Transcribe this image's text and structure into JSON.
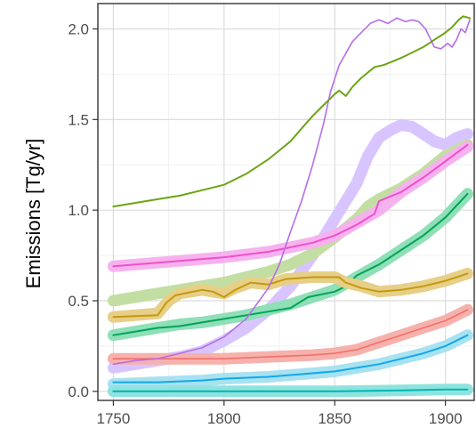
{
  "chart_data": {
    "type": "line",
    "title": "",
    "xlabel": "",
    "ylabel": "Emissions [Tg/yr]",
    "xlim": [
      1743,
      1913
    ],
    "ylim": [
      -0.05,
      2.14
    ],
    "x_ticks": [
      1750,
      1800,
      1850,
      1900
    ],
    "y_ticks": [
      0.0,
      0.5,
      1.0,
      1.5,
      2.0
    ],
    "x_tick_labels": [
      "1750",
      "1800",
      "1850",
      "1900"
    ],
    "y_tick_labels": [
      "0.0",
      "0.5",
      "1.0",
      "1.5",
      "2.0"
    ],
    "grid": true,
    "legend": "none",
    "series": [
      {
        "style": "band",
        "color": "#d8c5ff",
        "points": [
          [
            1750,
            0.13
          ],
          [
            1760,
            0.15
          ],
          [
            1770,
            0.17
          ],
          [
            1780,
            0.19
          ],
          [
            1790,
            0.22
          ],
          [
            1800,
            0.28
          ],
          [
            1810,
            0.35
          ],
          [
            1820,
            0.45
          ],
          [
            1830,
            0.58
          ],
          [
            1840,
            0.75
          ],
          [
            1850,
            0.95
          ],
          [
            1860,
            1.15
          ],
          [
            1865,
            1.3
          ],
          [
            1870,
            1.4
          ],
          [
            1875,
            1.44
          ],
          [
            1880,
            1.47
          ],
          [
            1885,
            1.46
          ],
          [
            1890,
            1.42
          ],
          [
            1895,
            1.38
          ],
          [
            1900,
            1.36
          ],
          [
            1905,
            1.4
          ],
          [
            1910,
            1.42
          ]
        ]
      },
      {
        "style": "band",
        "color": "#c3dea2",
        "points": [
          [
            1750,
            0.5
          ],
          [
            1760,
            0.52
          ],
          [
            1770,
            0.54
          ],
          [
            1780,
            0.56
          ],
          [
            1790,
            0.58
          ],
          [
            1800,
            0.6
          ],
          [
            1810,
            0.63
          ],
          [
            1820,
            0.66
          ],
          [
            1830,
            0.7
          ],
          [
            1840,
            0.76
          ],
          [
            1850,
            0.85
          ],
          [
            1860,
            0.95
          ],
          [
            1865,
            1.02
          ],
          [
            1870,
            1.06
          ],
          [
            1875,
            1.09
          ],
          [
            1880,
            1.12
          ],
          [
            1885,
            1.16
          ],
          [
            1890,
            1.2
          ],
          [
            1895,
            1.25
          ],
          [
            1900,
            1.3
          ],
          [
            1905,
            1.33
          ],
          [
            1910,
            1.36
          ]
        ]
      },
      {
        "style": "band",
        "color": "#f6b2ee",
        "points": [
          [
            1750,
            0.69
          ],
          [
            1770,
            0.71
          ],
          [
            1800,
            0.74
          ],
          [
            1820,
            0.77
          ],
          [
            1840,
            0.82
          ],
          [
            1850,
            0.86
          ],
          [
            1860,
            0.93
          ],
          [
            1870,
            1.0
          ],
          [
            1880,
            1.1
          ],
          [
            1890,
            1.18
          ],
          [
            1900,
            1.27
          ],
          [
            1910,
            1.35
          ]
        ]
      },
      {
        "style": "line",
        "width": 2,
        "color": "#f14fc9",
        "points": [
          [
            1750,
            0.69
          ],
          [
            1770,
            0.71
          ],
          [
            1800,
            0.74
          ],
          [
            1820,
            0.77
          ],
          [
            1840,
            0.82
          ],
          [
            1850,
            0.86
          ],
          [
            1860,
            0.92
          ],
          [
            1868,
            0.98
          ],
          [
            1870,
            1.05
          ],
          [
            1880,
            1.1
          ],
          [
            1890,
            1.18
          ],
          [
            1900,
            1.27
          ],
          [
            1910,
            1.36
          ]
        ]
      },
      {
        "style": "band",
        "color": "#8fdfb7",
        "points": [
          [
            1750,
            0.31
          ],
          [
            1760,
            0.33
          ],
          [
            1770,
            0.35
          ],
          [
            1780,
            0.37
          ],
          [
            1790,
            0.38
          ],
          [
            1800,
            0.4
          ],
          [
            1810,
            0.42
          ],
          [
            1820,
            0.45
          ],
          [
            1830,
            0.48
          ],
          [
            1840,
            0.52
          ],
          [
            1850,
            0.56
          ],
          [
            1860,
            0.63
          ],
          [
            1870,
            0.7
          ],
          [
            1880,
            0.78
          ],
          [
            1890,
            0.86
          ],
          [
            1900,
            0.96
          ],
          [
            1910,
            1.09
          ]
        ]
      },
      {
        "style": "line",
        "width": 2,
        "color": "#00a35a",
        "points": [
          [
            1750,
            0.31
          ],
          [
            1760,
            0.33
          ],
          [
            1770,
            0.35
          ],
          [
            1780,
            0.36
          ],
          [
            1790,
            0.38
          ],
          [
            1800,
            0.4
          ],
          [
            1810,
            0.42
          ],
          [
            1820,
            0.44
          ],
          [
            1830,
            0.46
          ],
          [
            1838,
            0.52
          ],
          [
            1850,
            0.55
          ],
          [
            1855,
            0.58
          ],
          [
            1860,
            0.64
          ],
          [
            1870,
            0.7
          ],
          [
            1880,
            0.78
          ],
          [
            1890,
            0.86
          ],
          [
            1900,
            0.96
          ],
          [
            1910,
            1.09
          ]
        ]
      },
      {
        "style": "band",
        "color": "#e7cf88",
        "points": [
          [
            1750,
            0.41
          ],
          [
            1770,
            0.43
          ],
          [
            1775,
            0.5
          ],
          [
            1780,
            0.54
          ],
          [
            1790,
            0.56
          ],
          [
            1800,
            0.54
          ],
          [
            1805,
            0.57
          ],
          [
            1812,
            0.6
          ],
          [
            1820,
            0.59
          ],
          [
            1828,
            0.62
          ],
          [
            1840,
            0.63
          ],
          [
            1850,
            0.63
          ],
          [
            1855,
            0.6
          ],
          [
            1862,
            0.58
          ],
          [
            1870,
            0.55
          ],
          [
            1880,
            0.56
          ],
          [
            1890,
            0.58
          ],
          [
            1900,
            0.61
          ],
          [
            1910,
            0.65
          ]
        ]
      },
      {
        "style": "line",
        "width": 2,
        "color": "#c39a0d",
        "points": [
          [
            1750,
            0.41
          ],
          [
            1770,
            0.42
          ],
          [
            1774,
            0.49
          ],
          [
            1778,
            0.53
          ],
          [
            1790,
            0.56
          ],
          [
            1795,
            0.55
          ],
          [
            1800,
            0.52
          ],
          [
            1805,
            0.56
          ],
          [
            1812,
            0.6
          ],
          [
            1820,
            0.59
          ],
          [
            1828,
            0.62
          ],
          [
            1840,
            0.63
          ],
          [
            1848,
            0.63
          ],
          [
            1852,
            0.63
          ],
          [
            1855,
            0.6
          ],
          [
            1862,
            0.57
          ],
          [
            1870,
            0.55
          ],
          [
            1880,
            0.56
          ],
          [
            1890,
            0.58
          ],
          [
            1900,
            0.61
          ],
          [
            1910,
            0.65
          ]
        ]
      },
      {
        "style": "band",
        "color": "#f6b1ac",
        "points": [
          [
            1750,
            0.18
          ],
          [
            1770,
            0.18
          ],
          [
            1800,
            0.18
          ],
          [
            1820,
            0.19
          ],
          [
            1840,
            0.2
          ],
          [
            1850,
            0.21
          ],
          [
            1860,
            0.23
          ],
          [
            1870,
            0.27
          ],
          [
            1880,
            0.31
          ],
          [
            1890,
            0.35
          ],
          [
            1900,
            0.39
          ],
          [
            1910,
            0.45
          ]
        ]
      },
      {
        "style": "line",
        "width": 1.6,
        "color": "#f1706a",
        "points": [
          [
            1750,
            0.18
          ],
          [
            1770,
            0.18
          ],
          [
            1800,
            0.18
          ],
          [
            1820,
            0.19
          ],
          [
            1840,
            0.2
          ],
          [
            1850,
            0.21
          ],
          [
            1860,
            0.23
          ],
          [
            1870,
            0.27
          ],
          [
            1880,
            0.31
          ],
          [
            1890,
            0.35
          ],
          [
            1900,
            0.39
          ],
          [
            1910,
            0.45
          ]
        ]
      },
      {
        "style": "band",
        "color": "#a8e1f0",
        "points": [
          [
            1750,
            0.04
          ],
          [
            1770,
            0.05
          ],
          [
            1790,
            0.06
          ],
          [
            1800,
            0.07
          ],
          [
            1820,
            0.08
          ],
          [
            1840,
            0.1
          ],
          [
            1850,
            0.11
          ],
          [
            1860,
            0.13
          ],
          [
            1870,
            0.15
          ],
          [
            1880,
            0.18
          ],
          [
            1890,
            0.21
          ],
          [
            1900,
            0.25
          ],
          [
            1910,
            0.31
          ]
        ]
      },
      {
        "style": "line",
        "width": 2,
        "color": "#0fa8ec",
        "points": [
          [
            1750,
            0.05
          ],
          [
            1770,
            0.05
          ],
          [
            1790,
            0.06
          ],
          [
            1800,
            0.07
          ],
          [
            1820,
            0.08
          ],
          [
            1840,
            0.1
          ],
          [
            1850,
            0.11
          ],
          [
            1860,
            0.13
          ],
          [
            1870,
            0.15
          ],
          [
            1880,
            0.18
          ],
          [
            1890,
            0.21
          ],
          [
            1900,
            0.25
          ],
          [
            1910,
            0.31
          ]
        ]
      },
      {
        "style": "band",
        "color": "#8ee3df",
        "points": [
          [
            1750,
            0.0
          ],
          [
            1800,
            0.0
          ],
          [
            1850,
            0.0
          ],
          [
            1880,
            0.005
          ],
          [
            1900,
            0.01
          ],
          [
            1910,
            0.01
          ]
        ]
      },
      {
        "style": "line",
        "width": 2,
        "color": "#00b5b0",
        "points": [
          [
            1750,
            0.0
          ],
          [
            1800,
            0.0
          ],
          [
            1850,
            0.0
          ],
          [
            1880,
            0.005
          ],
          [
            1900,
            0.01
          ],
          [
            1910,
            0.01
          ]
        ]
      },
      {
        "style": "line",
        "width": 1.6,
        "color": "#b66de8",
        "points": [
          [
            1750,
            0.15
          ],
          [
            1760,
            0.17
          ],
          [
            1770,
            0.18
          ],
          [
            1780,
            0.21
          ],
          [
            1790,
            0.24
          ],
          [
            1800,
            0.3
          ],
          [
            1810,
            0.4
          ],
          [
            1820,
            0.57
          ],
          [
            1825,
            0.7
          ],
          [
            1830,
            0.88
          ],
          [
            1835,
            1.05
          ],
          [
            1840,
            1.25
          ],
          [
            1845,
            1.48
          ],
          [
            1848,
            1.65
          ],
          [
            1852,
            1.8
          ],
          [
            1858,
            1.93
          ],
          [
            1862,
            1.98
          ],
          [
            1866,
            2.03
          ],
          [
            1870,
            2.05
          ],
          [
            1874,
            2.03
          ],
          [
            1878,
            2.06
          ],
          [
            1882,
            2.04
          ],
          [
            1885,
            2.05
          ],
          [
            1888,
            2.04
          ],
          [
            1891,
            2.0
          ],
          [
            1893,
            1.95
          ],
          [
            1895,
            1.9
          ],
          [
            1898,
            1.89
          ],
          [
            1901,
            1.92
          ],
          [
            1903,
            1.9
          ],
          [
            1905,
            1.94
          ],
          [
            1907,
            2.0
          ],
          [
            1909,
            1.98
          ],
          [
            1911,
            2.05
          ]
        ]
      },
      {
        "style": "line",
        "width": 2,
        "color": "#6aa512",
        "points": [
          [
            1750,
            1.02
          ],
          [
            1760,
            1.04
          ],
          [
            1770,
            1.06
          ],
          [
            1780,
            1.08
          ],
          [
            1790,
            1.11
          ],
          [
            1800,
            1.14
          ],
          [
            1810,
            1.2
          ],
          [
            1820,
            1.28
          ],
          [
            1825,
            1.33
          ],
          [
            1830,
            1.38
          ],
          [
            1835,
            1.45
          ],
          [
            1840,
            1.52
          ],
          [
            1845,
            1.58
          ],
          [
            1850,
            1.64
          ],
          [
            1852,
            1.66
          ],
          [
            1855,
            1.63
          ],
          [
            1858,
            1.68
          ],
          [
            1862,
            1.73
          ],
          [
            1865,
            1.76
          ],
          [
            1868,
            1.79
          ],
          [
            1872,
            1.8
          ],
          [
            1876,
            1.82
          ],
          [
            1880,
            1.84
          ],
          [
            1885,
            1.87
          ],
          [
            1890,
            1.9
          ],
          [
            1895,
            1.94
          ],
          [
            1900,
            1.98
          ],
          [
            1903,
            2.01
          ],
          [
            1906,
            2.05
          ],
          [
            1908,
            2.07
          ],
          [
            1911,
            2.06
          ]
        ]
      }
    ]
  }
}
